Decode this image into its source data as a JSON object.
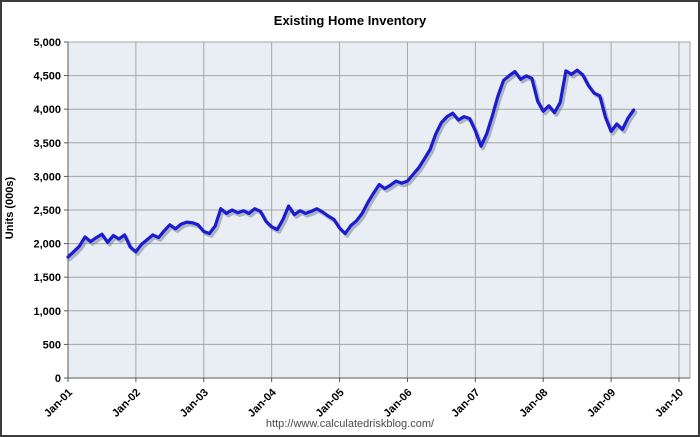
{
  "page": {
    "footer_url": "http://www.calculatedriskblog.com/"
  },
  "chart_data": {
    "type": "line",
    "title": "Existing Home Inventory",
    "xlabel": "",
    "ylabel": "Units (000s)",
    "ylim": [
      0,
      5000
    ],
    "grid": "on",
    "legend": "none",
    "x_start": "Jan-2001",
    "x_end": "May-2009",
    "x_interval": "monthly",
    "x_tick_labels": [
      "Jan-01",
      "Jan-02",
      "Jan-03",
      "Jan-04",
      "Jan-05",
      "Jan-06",
      "Jan-07",
      "Jan-08",
      "Jan-09",
      "Jan-10"
    ],
    "y_ticks": [
      0,
      500,
      1000,
      1500,
      2000,
      2500,
      3000,
      3500,
      4000,
      4500,
      5000
    ],
    "y_tick_labels": [
      "0",
      "500",
      "1,000",
      "1,500",
      "2,000",
      "2,500",
      "3,000",
      "3,500",
      "4,000",
      "4,500",
      "5,000"
    ],
    "series": [
      {
        "name": "Existing Home Inventory (000s)",
        "values": [
          1800,
          1880,
          1960,
          2100,
          2030,
          2090,
          2140,
          2020,
          2120,
          2070,
          2130,
          1950,
          1880,
          1990,
          2060,
          2130,
          2090,
          2190,
          2280,
          2220,
          2290,
          2320,
          2310,
          2280,
          2180,
          2150,
          2260,
          2520,
          2450,
          2500,
          2460,
          2490,
          2450,
          2520,
          2480,
          2330,
          2250,
          2210,
          2360,
          2560,
          2430,
          2490,
          2450,
          2480,
          2520,
          2470,
          2410,
          2360,
          2230,
          2150,
          2270,
          2340,
          2450,
          2610,
          2750,
          2880,
          2820,
          2870,
          2930,
          2900,
          2930,
          3030,
          3130,
          3260,
          3400,
          3630,
          3800,
          3890,
          3940,
          3840,
          3890,
          3860,
          3680,
          3450,
          3630,
          3900,
          4200,
          4430,
          4500,
          4560,
          4445,
          4495,
          4460,
          4120,
          3970,
          4050,
          3950,
          4100,
          4570,
          4520,
          4580,
          4510,
          4350,
          4240,
          4200,
          3880,
          3670,
          3780,
          3700,
          3870,
          3990
        ]
      }
    ],
    "style": {
      "line_color": "#1b1bd0",
      "shadow_color": "rgba(110,120,145,0.5)",
      "plot_bg": "#e9eef5",
      "grid_color": "#a6a6a6",
      "axis_color": "#595959",
      "tick_label_color": "#000000"
    }
  }
}
